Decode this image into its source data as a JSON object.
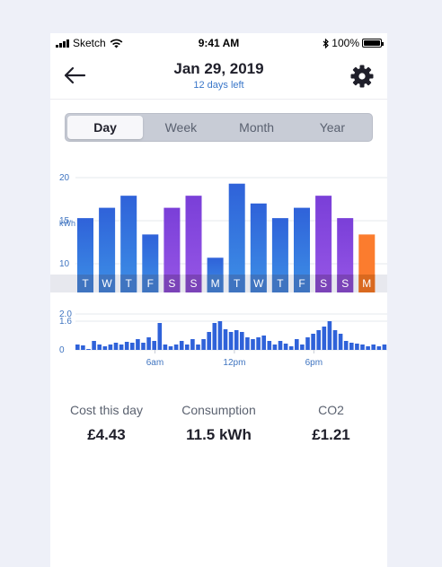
{
  "status_bar": {
    "carrier": "Sketch",
    "time": "9:41 AM",
    "battery": "100%"
  },
  "header": {
    "title": "Jan 29, 2019",
    "subtitle": "12 days left"
  },
  "tabs": [
    {
      "label": "Day",
      "active": true
    },
    {
      "label": "Week",
      "active": false
    },
    {
      "label": "Month",
      "active": false
    },
    {
      "label": "Year",
      "active": false
    }
  ],
  "colors": {
    "weekday_top": "#2f62d9",
    "weekday_bottom": "#3d8fe6",
    "weekend_top": "#7a3fd8",
    "weekend_bottom": "#9656e6",
    "today": "#fb7c2e",
    "label_weekday": "#3f74c0",
    "label_weekend": "#7b43b8",
    "label_today": "#d9691f"
  },
  "chart_data": [
    {
      "type": "bar",
      "unit": "kWh",
      "yticks": [
        20,
        15,
        10
      ],
      "ylim": [
        10,
        20
      ],
      "categories": [
        "T",
        "W",
        "T",
        "F",
        "S",
        "S",
        "M",
        "T",
        "W",
        "T",
        "F",
        "S",
        "S",
        "M"
      ],
      "kinds": [
        "weekday",
        "weekday",
        "weekday",
        "weekday",
        "weekend",
        "weekend",
        "weekday",
        "weekday",
        "weekday",
        "weekday",
        "weekday",
        "weekend",
        "weekend",
        "today"
      ],
      "values": [
        15.3,
        16.5,
        17.9,
        13.4,
        16.5,
        17.9,
        10.7,
        19.3,
        17.0,
        15.3,
        16.5,
        17.9,
        15.3,
        13.4
      ]
    },
    {
      "type": "bar",
      "yticks": [
        "2.0",
        "1.6",
        "0"
      ],
      "ylim": [
        0,
        2
      ],
      "xticks": [
        {
          "label": "6am",
          "hour": 6
        },
        {
          "label": "12pm",
          "hour": 12
        },
        {
          "label": "6pm",
          "hour": 18
        }
      ],
      "values": [
        0.3,
        0.25,
        0.05,
        0.5,
        0.3,
        0.2,
        0.3,
        0.4,
        0.3,
        0.45,
        0.4,
        0.6,
        0.4,
        0.7,
        0.5,
        1.5,
        0.3,
        0.2,
        0.3,
        0.5,
        0.3,
        0.6,
        0.3,
        0.6,
        1.0,
        1.5,
        1.6,
        1.15,
        1.0,
        1.1,
        1.0,
        0.7,
        0.6,
        0.7,
        0.8,
        0.5,
        0.3,
        0.5,
        0.35,
        0.2,
        0.6,
        0.3,
        0.7,
        0.9,
        1.1,
        1.3,
        1.6,
        1.1,
        0.9,
        0.5,
        0.4,
        0.35,
        0.3,
        0.2,
        0.3,
        0.2,
        0.3,
        0.35
      ]
    }
  ],
  "stats": [
    {
      "label": "Cost this day",
      "value": "£4.43"
    },
    {
      "label": "Consumption",
      "value": "11.5 kWh"
    },
    {
      "label": "CO2",
      "value": "£1.21"
    }
  ]
}
